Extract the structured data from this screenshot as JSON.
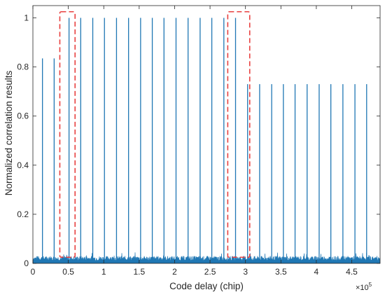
{
  "chart_data": {
    "type": "line",
    "title": "",
    "xlabel": "Code delay (chip)",
    "ylabel": "Normalized correlation results",
    "x_exponent_label": "×10",
    "x_exponent_power": "5",
    "xlim": [
      0,
      490000
    ],
    "ylim": [
      0,
      1.05
    ],
    "x_ticks": [
      0,
      50000,
      100000,
      150000,
      200000,
      250000,
      300000,
      350000,
      400000,
      450000
    ],
    "x_tick_labels": [
      "0",
      "0.5",
      "1",
      "1.5",
      "2",
      "2.5",
      "3",
      "3.5",
      "4",
      "4.5"
    ],
    "y_ticks": [
      0,
      0.2,
      0.4,
      0.6,
      0.8,
      1
    ],
    "y_tick_labels": [
      "0",
      "0.2",
      "0.4",
      "0.6",
      "0.8",
      "1"
    ],
    "series": [
      {
        "color": "#1f77b4",
        "noise_floor": 0.03,
        "peaks": [
          {
            "x": 13500,
            "y": 0.835
          },
          {
            "x": 30000,
            "y": 0.835
          },
          {
            "x": 51000,
            "y": 1.0
          },
          {
            "x": 67500,
            "y": 1.0
          },
          {
            "x": 84500,
            "y": 1.0
          },
          {
            "x": 101000,
            "y": 1.0
          },
          {
            "x": 118000,
            "y": 1.0
          },
          {
            "x": 135000,
            "y": 1.0
          },
          {
            "x": 152000,
            "y": 1.0
          },
          {
            "x": 168500,
            "y": 1.0
          },
          {
            "x": 185000,
            "y": 1.0
          },
          {
            "x": 202000,
            "y": 1.0
          },
          {
            "x": 219000,
            "y": 1.0
          },
          {
            "x": 236000,
            "y": 1.0
          },
          {
            "x": 252500,
            "y": 1.0
          },
          {
            "x": 269500,
            "y": 1.0
          },
          {
            "x": 286000,
            "y": 1.0
          },
          {
            "x": 303000,
            "y": 0.73
          },
          {
            "x": 320000,
            "y": 0.73
          },
          {
            "x": 337000,
            "y": 0.73
          },
          {
            "x": 353500,
            "y": 0.73
          },
          {
            "x": 370000,
            "y": 0.73
          },
          {
            "x": 387000,
            "y": 0.73
          },
          {
            "x": 404000,
            "y": 0.73
          },
          {
            "x": 420500,
            "y": 0.73
          },
          {
            "x": 437500,
            "y": 0.73
          },
          {
            "x": 454500,
            "y": 0.73
          },
          {
            "x": 471000,
            "y": 0.73
          }
        ]
      }
    ],
    "highlight_boxes": [
      {
        "x0": 38000,
        "x1": 59500,
        "y0": 0.025,
        "y1": 1.025,
        "color": "#e8403f"
      },
      {
        "x0": 275000,
        "x1": 306000,
        "y0": 0.025,
        "y1": 1.025,
        "color": "#e8403f"
      }
    ],
    "grid": false,
    "legend": "none",
    "axes_color": "#262626"
  }
}
